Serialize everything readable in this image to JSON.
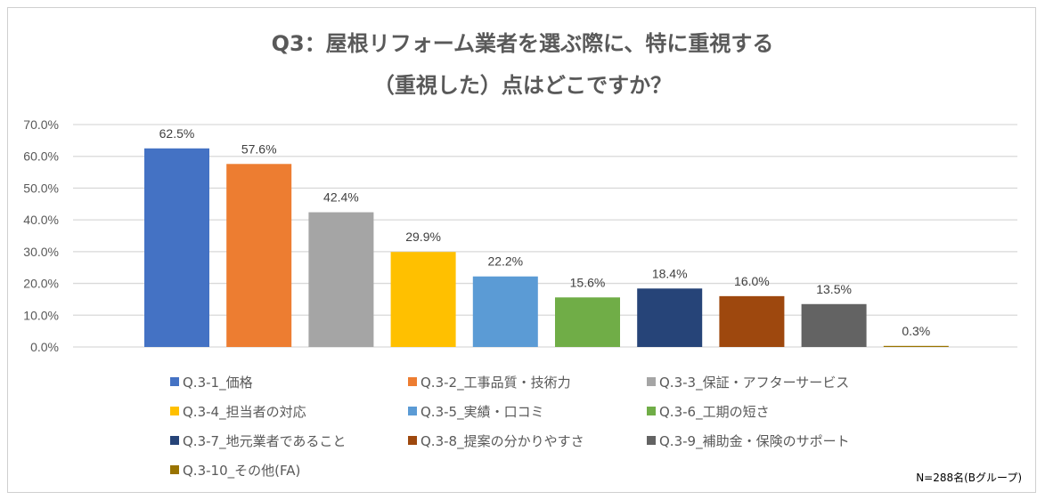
{
  "chart_data": {
    "type": "bar",
    "title_lines": [
      "Q3：屋根リフォーム業者を選ぶ際に、特に重視する",
      "（重視した）点はどこですか？"
    ],
    "categories": [
      "Q.3-1_価格",
      "Q.3-2_工事品質・技術力",
      "Q.3-3_保証・アフターサービス",
      "Q.3-4_担当者の対応",
      "Q.3-5_実績・口コミ",
      "Q.3-6_工期の短さ",
      "Q.3-7_地元業者であること",
      "Q.3-8_提案の分かりやすさ",
      "Q.3-9_補助金・保険のサポート",
      "Q.3-10_その他(FA)"
    ],
    "values": [
      62.5,
      57.6,
      42.4,
      29.9,
      22.2,
      15.6,
      18.4,
      16.0,
      13.5,
      0.3
    ],
    "data_labels": [
      "62.5%",
      "57.6%",
      "42.4%",
      "29.9%",
      "22.2%",
      "15.6%",
      "18.4%",
      "16.0%",
      "13.5%",
      "0.3%"
    ],
    "colors": [
      "#4472C4",
      "#ED7D31",
      "#A5A5A5",
      "#FFC000",
      "#5B9BD5",
      "#70AD47",
      "#264478",
      "#9E480E",
      "#636363",
      "#997300"
    ],
    "ylim": [
      0,
      70
    ],
    "yticks": [
      0,
      10,
      20,
      30,
      40,
      50,
      60,
      70
    ],
    "ytick_labels": [
      "0.0%",
      "10.0%",
      "20.0%",
      "30.0%",
      "40.0%",
      "50.0%",
      "60.0%",
      "70.0%"
    ],
    "xlabel": "",
    "ylabel": "",
    "grid": true,
    "legend_position": "bottom",
    "note": "N=288名(Bグループ)"
  }
}
